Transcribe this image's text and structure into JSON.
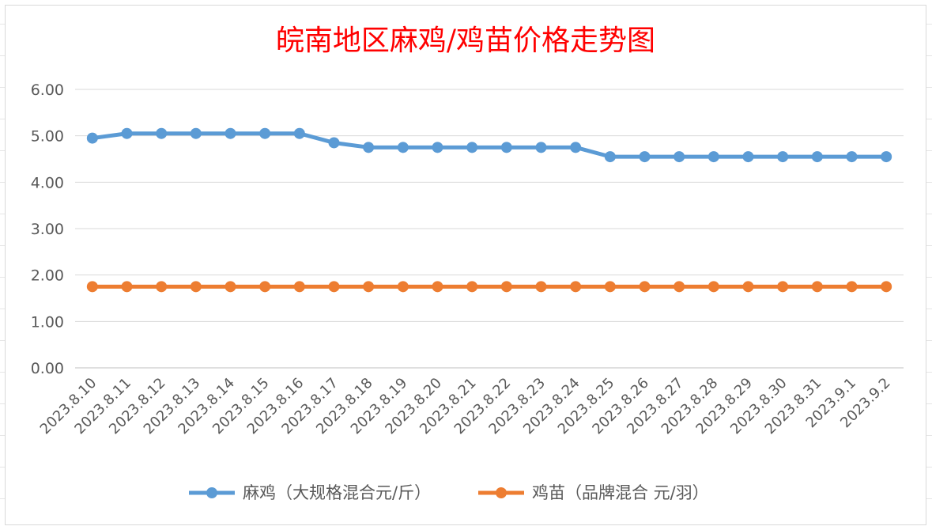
{
  "chart_data": {
    "type": "line",
    "title": "皖南地区麻鸡/鸡苗价格走势图",
    "xlabel": "",
    "ylabel": "",
    "categories": [
      "2023.8.10",
      "2023.8.11",
      "2023.8.12",
      "2023.8.13",
      "2023.8.14",
      "2023.8.15",
      "2023.8.16",
      "2023.8.17",
      "2023.8.18",
      "2023.8.19",
      "2023.8.20",
      "2023.8.21",
      "2023.8.22",
      "2023.8.23",
      "2023.8.24",
      "2023.8.25",
      "2023.8.26",
      "2023.8.27",
      "2023.8.28",
      "2023.8.29",
      "2023.8.30",
      "2023.8.31",
      "2023.9.1",
      "2023.9.2"
    ],
    "ylim": [
      0,
      6
    ],
    "yticks": [
      "0.00",
      "1.00",
      "2.00",
      "3.00",
      "4.00",
      "5.00",
      "6.00"
    ],
    "grid": true,
    "legend_position": "bottom",
    "series": [
      {
        "name": "麻鸡（大规格混合元/斤）",
        "color": "#5b9bd5",
        "values": [
          4.95,
          5.05,
          5.05,
          5.05,
          5.05,
          5.05,
          5.05,
          4.85,
          4.75,
          4.75,
          4.75,
          4.75,
          4.75,
          4.75,
          4.75,
          4.55,
          4.55,
          4.55,
          4.55,
          4.55,
          4.55,
          4.55,
          4.55,
          4.55
        ]
      },
      {
        "name": "鸡苗（品牌混合 元/羽）",
        "color": "#ed7d31",
        "values": [
          1.75,
          1.75,
          1.75,
          1.75,
          1.75,
          1.75,
          1.75,
          1.75,
          1.75,
          1.75,
          1.75,
          1.75,
          1.75,
          1.75,
          1.75,
          1.75,
          1.75,
          1.75,
          1.75,
          1.75,
          1.75,
          1.75,
          1.75,
          1.75
        ]
      }
    ]
  }
}
